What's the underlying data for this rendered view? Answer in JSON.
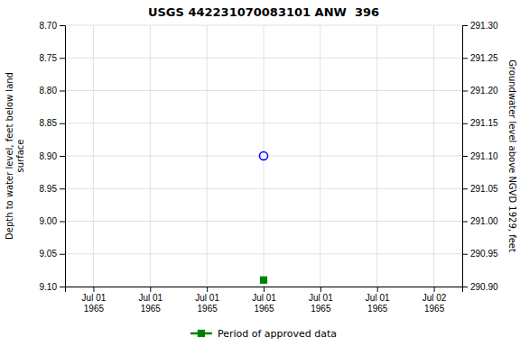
{
  "chart_data": {
    "type": "scatter",
    "title": "USGS 442231070083101 ANW  396",
    "y_label": "Depth to water level, feet below land\nsurface",
    "y2_label": "Groundwater level above NGVD 1929, feet",
    "categories": [
      "Jul 01\n1965",
      "Jul 01\n1965",
      "Jul 01\n1965",
      "Jul 01\n1965",
      "Jul 01\n1965",
      "Jul 01\n1965",
      "Jul 02\n1965"
    ],
    "series": [
      {
        "color": "blue",
        "marker": "open-circle",
        "values": [
          null,
          null,
          null,
          8.9,
          null,
          null,
          null
        ]
      },
      {
        "name": "Period of approved data",
        "color": "green",
        "marker": "square",
        "values": [
          null,
          null,
          null,
          9.09,
          null,
          null,
          null
        ]
      }
    ],
    "ylim": [
      9.1,
      8.7
    ],
    "yticks": [
      {
        "value": 8.7,
        "label": "8.70"
      },
      8.75,
      {
        "value": 8.8,
        "label": "8.80"
      },
      8.85,
      {
        "value": 8.9,
        "label": "8.90"
      },
      8.95,
      {
        "value": 9.0,
        "label": "9.00"
      },
      9.05,
      {
        "value": 9.1,
        "label": "9.10"
      }
    ],
    "y2lim": [
      290.9,
      291.3
    ],
    "y2ticks": [
      {
        "value": 290.9,
        "label": "290.90"
      },
      290.95,
      {
        "value": 291.0,
        "label": "291.00"
      },
      291.05,
      {
        "value": 291.1,
        "label": "291.10"
      },
      291.15,
      {
        "value": 291.2,
        "label": "291.20"
      },
      291.25,
      {
        "value": 291.3,
        "label": "291.30"
      }
    ],
    "grid": true,
    "legend": "bottom"
  }
}
